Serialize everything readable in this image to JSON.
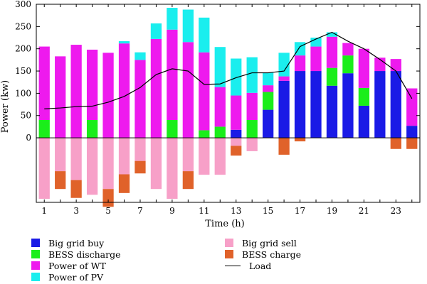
{
  "chart_data": {
    "type": "bar",
    "stacked": true,
    "xlabel": "Time (h)",
    "ylabel": "Power (kw)",
    "ylim": [
      -145,
      300
    ],
    "yticks": [
      0,
      50,
      100,
      150,
      200,
      250,
      300
    ],
    "xticks": [
      1,
      3,
      5,
      7,
      9,
      11,
      13,
      15,
      17,
      19,
      21,
      23
    ],
    "x": [
      1,
      2,
      3,
      4,
      5,
      6,
      7,
      8,
      9,
      10,
      11,
      12,
      13,
      14,
      15,
      16,
      17,
      18,
      19,
      20,
      21,
      22,
      23,
      24
    ],
    "series": [
      {
        "name": "Big grid buy",
        "key": "grid_buy",
        "color": "#1a1ae6",
        "values": [
          0,
          0,
          0,
          0,
          0,
          0,
          0,
          0,
          0,
          0,
          0,
          0,
          18,
          0,
          63,
          128,
          150,
          150,
          117,
          145,
          72,
          150,
          150,
          27
        ]
      },
      {
        "name": "BESS discharge",
        "key": "bess_discharge",
        "color": "#1aee1a",
        "values": [
          40,
          0,
          0,
          40,
          0,
          0,
          0,
          0,
          40,
          0,
          17,
          25,
          0,
          40,
          40,
          0,
          0,
          0,
          40,
          40,
          40,
          0,
          0,
          0
        ]
      },
      {
        "name": "Power of WT",
        "key": "wt",
        "color": "#ee1aee",
        "values": [
          165,
          183,
          209,
          158,
          191,
          212,
          175,
          222,
          203,
          215,
          175,
          89,
          77,
          61,
          15,
          10,
          35,
          55,
          70,
          28,
          88,
          30,
          27,
          84
        ]
      },
      {
        "name": "Power of PV",
        "key": "pv",
        "color": "#1aeeee",
        "values": [
          0,
          0,
          0,
          0,
          0,
          5,
          17,
          35,
          49,
          73,
          78,
          90,
          83,
          80,
          28,
          53,
          30,
          20,
          10,
          0,
          0,
          0,
          0,
          0
        ]
      },
      {
        "name": "Big grid sell",
        "key": "grid_sell",
        "color": "#f7a0c8",
        "values": [
          -137,
          -75,
          -95,
          -128,
          -115,
          -82,
          -52,
          -115,
          -137,
          -75,
          -83,
          -83,
          -18,
          -30,
          0,
          0,
          0,
          0,
          0,
          0,
          0,
          0,
          0,
          0
        ]
      },
      {
        "name": "BESS charge",
        "key": "bess_charge",
        "color": "#e0622a",
        "values": [
          0,
          -40,
          -40,
          0,
          -40,
          -42,
          -28,
          0,
          0,
          -40,
          0,
          0,
          -22,
          0,
          0,
          -38,
          -8,
          0,
          0,
          0,
          0,
          0,
          -25,
          -25
        ]
      }
    ],
    "line": {
      "name": "Load",
      "color": "#000000",
      "values": [
        65,
        67,
        70,
        71,
        80,
        93,
        113,
        142,
        155,
        150,
        120,
        121,
        135,
        146,
        146,
        150,
        205,
        222,
        237,
        217,
        200,
        176,
        150,
        88
      ]
    },
    "legend_position": "bottom",
    "legend_order": [
      "grid_buy",
      "grid_sell",
      "bess_discharge",
      "bess_charge",
      "wt",
      "load",
      "pv"
    ]
  }
}
